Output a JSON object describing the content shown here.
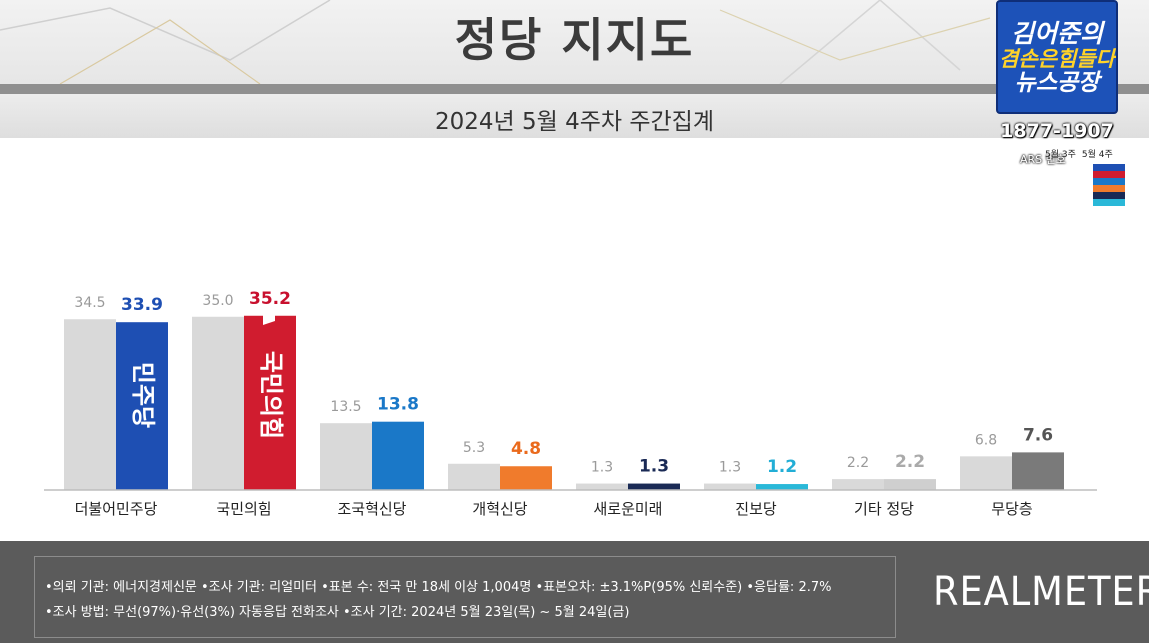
{
  "title": "정당 지지도",
  "subtitle": "2024년 5월 4주차 주간집계",
  "logo": {
    "line1": "김어준의",
    "line2": "겸손은힘들다",
    "line3": "뉴스공장",
    "phone": "1877-1907",
    "ars": "ARS 번호"
  },
  "legend_small": {
    "prev": "5월 3주",
    "curr": "5월 4주"
  },
  "colors": {
    "prev_bar": "#d9d9d9",
    "axis": "#bdbdbd",
    "swatches": [
      "#1e4fb3",
      "#d01c2f",
      "#1a78c8",
      "#f07b2c",
      "#1a2a55",
      "#2ab8d8"
    ]
  },
  "chart_data": {
    "type": "bar",
    "categories": [
      "더불어민주당",
      "국민의힘",
      "조국혁신당",
      "개혁신당",
      "새로운미래",
      "진보당",
      "기타 정당",
      "무당층"
    ],
    "series": [
      {
        "name": "5월 3주",
        "values": [
          34.5,
          35.0,
          13.5,
          5.3,
          1.3,
          1.3,
          2.2,
          6.8
        ]
      },
      {
        "name": "5월 4주",
        "values": [
          33.9,
          35.2,
          13.8,
          4.8,
          1.3,
          1.2,
          2.2,
          7.6
        ]
      }
    ],
    "prev_labels": [
      "34.5",
      "35.0",
      "13.5",
      "5.3",
      "1.3",
      "1.3",
      "2.2",
      "6.8"
    ],
    "curr_labels": [
      "33.9",
      "35.2",
      "13.8",
      "4.8",
      "1.3",
      "1.2",
      "2.2",
      "7.6"
    ],
    "curr_colors": [
      "#1e4fb3",
      "#d01c2f",
      "#1a78c8",
      "#f07b2c",
      "#1a2a55",
      "#2ab8d8",
      "#cfcfcf",
      "#7a7a7a"
    ],
    "label_colors": [
      "#1e4fb3",
      "#c8102e",
      "#1a78c8",
      "#ea6a1c",
      "#1a2a55",
      "#22aed6",
      "#aaaaaa",
      "#555555"
    ],
    "bar_logos": [
      "민주당",
      "국민의힘"
    ],
    "ylim": [
      0,
      40
    ],
    "grid": false
  },
  "footer": {
    "note1": "•의뢰 기관: 에너지경제신문  •조사 기관: 리얼미터 •표본 수: 전국 만 18세 이상 1,004명 •표본오차: ±3.1%P(95% 신뢰수준) •응답률: 2.7%",
    "note2": "•조사 방법: 무선(97%)·유선(3%) 자동응답 전화조사 •조사 기간: 2024년 5월 23일(목) ~ 5월 24일(금)",
    "brand": "REALMETER"
  }
}
